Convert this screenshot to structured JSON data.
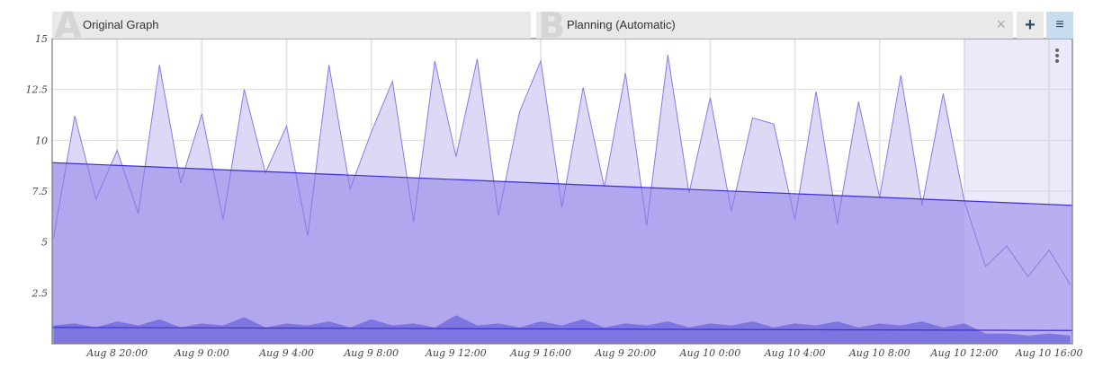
{
  "tabs": [
    {
      "letter": "A",
      "label": "Original Graph"
    },
    {
      "letter": "B",
      "label": "Planning (Automatic)"
    }
  ],
  "icons": {
    "close": "close-icon",
    "add": "plus-icon",
    "menu": "hamburger-menu-icon",
    "more": "vertical-ellipsis-icon"
  },
  "labels": {
    "close": "×",
    "add": "+",
    "menu": "≡",
    "more": "⋮"
  },
  "colors": {
    "series_fill": "#ddd8f6",
    "series_line": "#8a7ae3",
    "trend_fill": "#b1a7ee",
    "trend_line": "#3b2fd6",
    "low_fill": "#7e76e0",
    "forecast_fill": "#c9c1f3"
  },
  "chart_data": {
    "type": "area",
    "ylim": [
      0,
      15
    ],
    "xlim": [
      "Aug 8 16:56",
      "Aug 10 17:06"
    ],
    "yticks": [
      "2.5",
      "5",
      "7.5",
      "10",
      "12.5",
      "15"
    ],
    "xticks": [
      "Aug 8 20:00",
      "Aug 9 0:00",
      "Aug 9 4:00",
      "Aug 9 8:00",
      "Aug 9 12:00",
      "Aug 9 16:00",
      "Aug 9 20:00",
      "Aug 10 0:00",
      "Aug 10 4:00",
      "Aug 10 8:00",
      "Aug 10 12:00",
      "Aug 10 16:00"
    ],
    "grid": true,
    "x": [
      "Aug 8 17:00",
      "Aug 8 18:00",
      "Aug 8 19:00",
      "Aug 8 20:00",
      "Aug 8 21:00",
      "Aug 8 22:00",
      "Aug 8 23:00",
      "Aug 9 0:00",
      "Aug 9 1:00",
      "Aug 9 2:00",
      "Aug 9 3:00",
      "Aug 9 4:00",
      "Aug 9 5:00",
      "Aug 9 6:00",
      "Aug 9 7:00",
      "Aug 9 8:00",
      "Aug 9 9:00",
      "Aug 9 10:00",
      "Aug 9 11:00",
      "Aug 9 12:00",
      "Aug 9 13:00",
      "Aug 9 14:00",
      "Aug 9 15:00",
      "Aug 9 16:00",
      "Aug 9 17:00",
      "Aug 9 18:00",
      "Aug 9 19:00",
      "Aug 9 20:00",
      "Aug 9 21:00",
      "Aug 9 22:00",
      "Aug 9 23:00",
      "Aug 10 0:00",
      "Aug 10 1:00",
      "Aug 10 2:00",
      "Aug 10 3:00",
      "Aug 10 4:00",
      "Aug 10 5:00",
      "Aug 10 6:00",
      "Aug 10 7:00",
      "Aug 10 8:00",
      "Aug 10 9:00",
      "Aug 10 10:00",
      "Aug 10 11:00",
      "Aug 10 12:00",
      "Aug 10 13:00",
      "Aug 10 14:00",
      "Aug 10 15:00",
      "Aug 10 16:00",
      "Aug 10 17:00"
    ],
    "series": [
      {
        "values": [
          5.2,
          11.2,
          7.1,
          9.5,
          6.4,
          13.7,
          7.9,
          11.3,
          6.1,
          12.5,
          8.4,
          10.7,
          5.3,
          13.7,
          7.6,
          10.4,
          12.9,
          6.0,
          13.9,
          9.2,
          14.0,
          6.3,
          11.4,
          13.9,
          6.7,
          12.6,
          7.7,
          13.3,
          5.8,
          14.2,
          7.4,
          12.1,
          6.5,
          11.1,
          10.8,
          6.1,
          12.4,
          5.9,
          11.9,
          7.2,
          13.2,
          6.8,
          12.3,
          7.0,
          3.8,
          4.8,
          3.3,
          4.6,
          2.9
        ]
      },
      {
        "values": [
          0.9,
          1.0,
          0.8,
          1.1,
          0.9,
          1.2,
          0.8,
          1.0,
          0.9,
          1.3,
          0.8,
          1.0,
          0.9,
          1.1,
          0.8,
          1.2,
          0.9,
          1.0,
          0.8,
          1.4,
          0.9,
          1.0,
          0.8,
          1.1,
          0.9,
          1.2,
          0.8,
          1.0,
          0.9,
          1.1,
          0.8,
          1.0,
          0.9,
          1.1,
          0.8,
          1.0,
          0.9,
          1.1,
          0.8,
          1.0,
          0.9,
          1.1,
          0.8,
          1.0,
          0.5,
          0.5,
          0.4,
          0.5,
          0.4
        ]
      }
    ],
    "trend_lines": [
      {
        "x": [
          "Aug 8 16:56",
          "Aug 10 17:06"
        ],
        "values": [
          8.9,
          6.8
        ]
      },
      {
        "x": [
          "Aug 8 16:56",
          "Aug 10 17:06"
        ],
        "values": [
          0.8,
          0.65
        ]
      }
    ]
  }
}
